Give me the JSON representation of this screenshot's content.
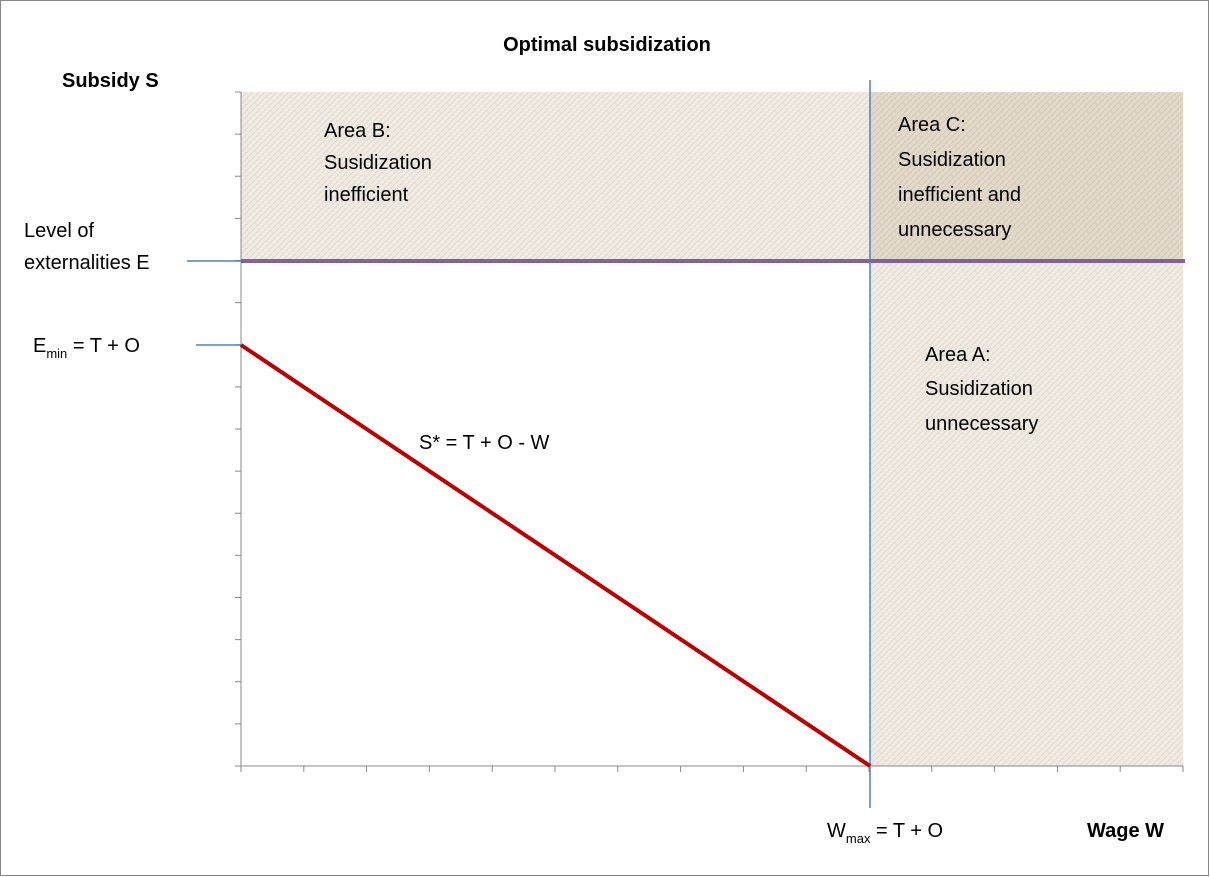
{
  "title": "Optimal subsidization",
  "y_axis_label": "Subsidy S",
  "x_axis_label": "Wage W",
  "externalities_label": [
    "Level of",
    "externalities E"
  ],
  "e_min_label": {
    "base": "E",
    "sub": "min",
    "rest": " = T + O"
  },
  "w_max_label": {
    "base": "W",
    "sub": "max",
    "rest": " = T + O"
  },
  "line_label": "S* = T + O - W",
  "areas": [
    {
      "lines": [
        "Area B:",
        "Susidization",
        "inefficient"
      ]
    },
    {
      "lines": [
        "Area C:",
        "Susidization",
        "inefficient and",
        "unnecessary"
      ]
    },
    {
      "lines": [
        "Area A:",
        "Susidization",
        "unnecessary"
      ]
    }
  ]
}
